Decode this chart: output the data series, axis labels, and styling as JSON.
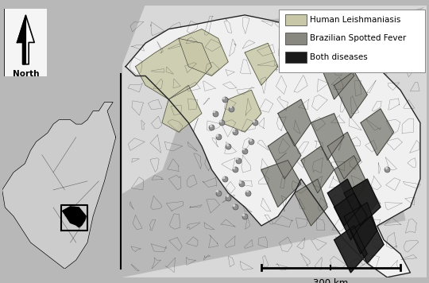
{
  "fig_bg": "#b8b8b8",
  "map_bg": "#e8e8e8",
  "sp_fill": "#f0f0f0",
  "sp_edge": "#222222",
  "neighbor_fill": "#d8d8d8",
  "neighbor_edge": "#555555",
  "leish_color": "#c8c8a8",
  "bsf_color": "#888880",
  "both_color": "#1a1a1a",
  "muni_edge": "#555555",
  "legend_items": [
    {
      "label": "Human Leishmaniasis",
      "color": "#c8c8a8"
    },
    {
      "label": "Brazilian Spotted Fever",
      "color": "#888880"
    },
    {
      "label": "Both diseases",
      "color": "#1a1a1a"
    }
  ],
  "legend_fontsize": 7.5,
  "scale_bar_label": "300 km",
  "north_label": "North",
  "city_marker_color": "#909090",
  "city_marker_size": 5,
  "city_marker_edge": "#505050",
  "north_box_color": "#f5f5f5"
}
